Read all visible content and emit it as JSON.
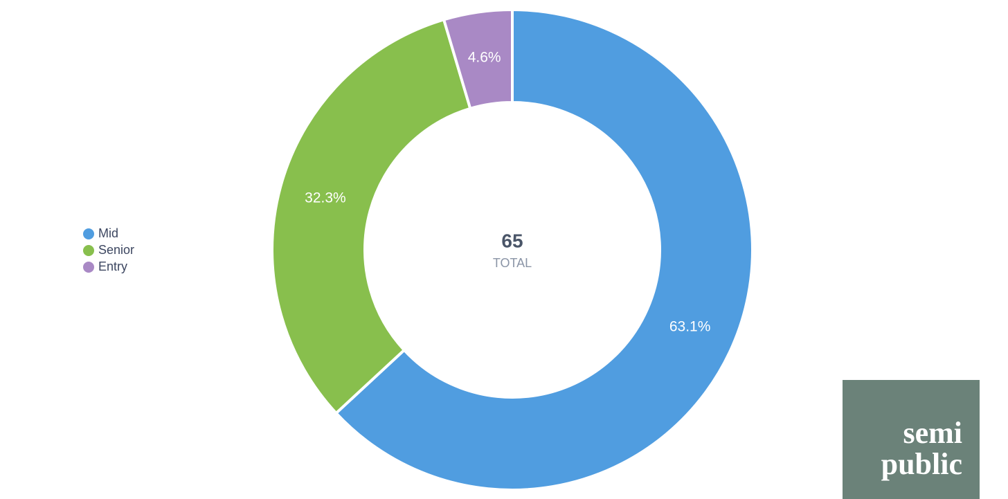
{
  "chart_data": {
    "type": "donut",
    "categories": [
      "Mid",
      "Senior",
      "Entry"
    ],
    "values": [
      63.1,
      32.3,
      4.6
    ],
    "value_labels": [
      "63.1%",
      "32.3%",
      "4.6%"
    ],
    "colors": [
      "#509de0",
      "#88bf4d",
      "#a989c5"
    ],
    "total": 65,
    "total_label": "TOTAL",
    "legend": "left"
  },
  "logo": {
    "lines": [
      "semi",
      "public"
    ]
  }
}
